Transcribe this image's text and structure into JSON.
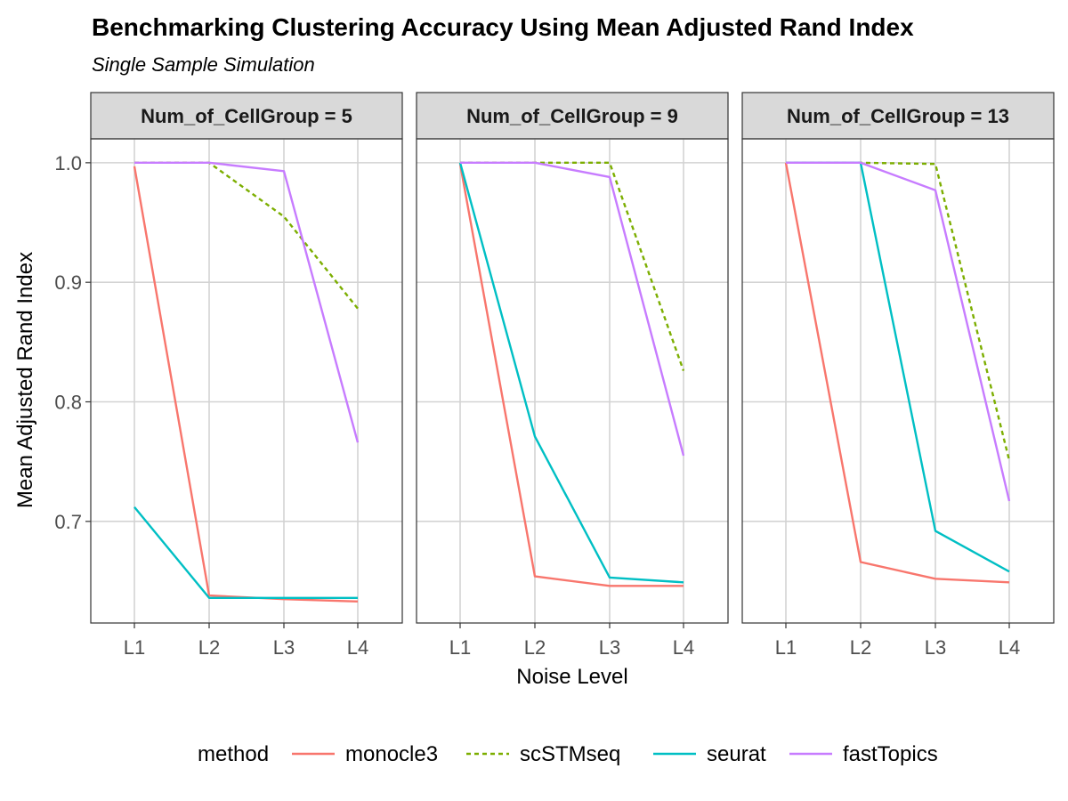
{
  "chart_data": {
    "type": "line",
    "title": "Benchmarking Clustering Accuracy Using Mean Adjusted Rand Index",
    "subtitle": "Single Sample Simulation",
    "xlabel": "Noise Level",
    "ylabel": "Mean Adjusted Rand Index",
    "categories": [
      "L1",
      "L2",
      "L3",
      "L4"
    ],
    "ylim": [
      0.615,
      1.02
    ],
    "yticks": [
      0.7,
      0.8,
      0.9,
      1.0
    ],
    "ytick_labels": [
      "0.7",
      "0.8",
      "0.9",
      "1.0"
    ],
    "grid": true,
    "legend": {
      "title": "method",
      "position": "bottom"
    },
    "series_styles": [
      {
        "name": "monocle3",
        "color": "#F8766D",
        "dashed": false
      },
      {
        "name": "scSTMseq",
        "color": "#7CAE00",
        "dashed": true
      },
      {
        "name": "seurat",
        "color": "#00BFC4",
        "dashed": false
      },
      {
        "name": "fastTopics",
        "color": "#C77CFF",
        "dashed": false
      }
    ],
    "panels": [
      {
        "label": "Num_of_CellGroup = 5",
        "series": [
          {
            "name": "monocle3",
            "values": [
              0.997,
              0.638,
              0.635,
              0.633
            ]
          },
          {
            "name": "scSTMseq",
            "values": [
              1.0,
              1.0,
              0.955,
              0.878
            ]
          },
          {
            "name": "seurat",
            "values": [
              0.712,
              0.636,
              0.636,
              0.636
            ]
          },
          {
            "name": "fastTopics",
            "values": [
              1.0,
              1.0,
              0.993,
              0.766
            ]
          }
        ]
      },
      {
        "label": "Num_of_CellGroup = 9",
        "series": [
          {
            "name": "monocle3",
            "values": [
              0.999,
              0.654,
              0.646,
              0.646
            ]
          },
          {
            "name": "scSTMseq",
            "values": [
              1.0,
              1.0,
              1.0,
              0.826
            ]
          },
          {
            "name": "seurat",
            "values": [
              1.0,
              0.771,
              0.653,
              0.649
            ]
          },
          {
            "name": "fastTopics",
            "values": [
              1.0,
              1.0,
              0.988,
              0.755
            ]
          }
        ]
      },
      {
        "label": "Num_of_CellGroup = 13",
        "series": [
          {
            "name": "monocle3",
            "values": [
              1.0,
              0.666,
              0.652,
              0.649
            ]
          },
          {
            "name": "scSTMseq",
            "values": [
              1.0,
              1.0,
              0.999,
              0.751
            ]
          },
          {
            "name": "seurat",
            "values": [
              1.0,
              1.0,
              0.692,
              0.658
            ]
          },
          {
            "name": "fastTopics",
            "values": [
              1.0,
              1.0,
              0.977,
              0.717
            ]
          }
        ]
      }
    ]
  }
}
